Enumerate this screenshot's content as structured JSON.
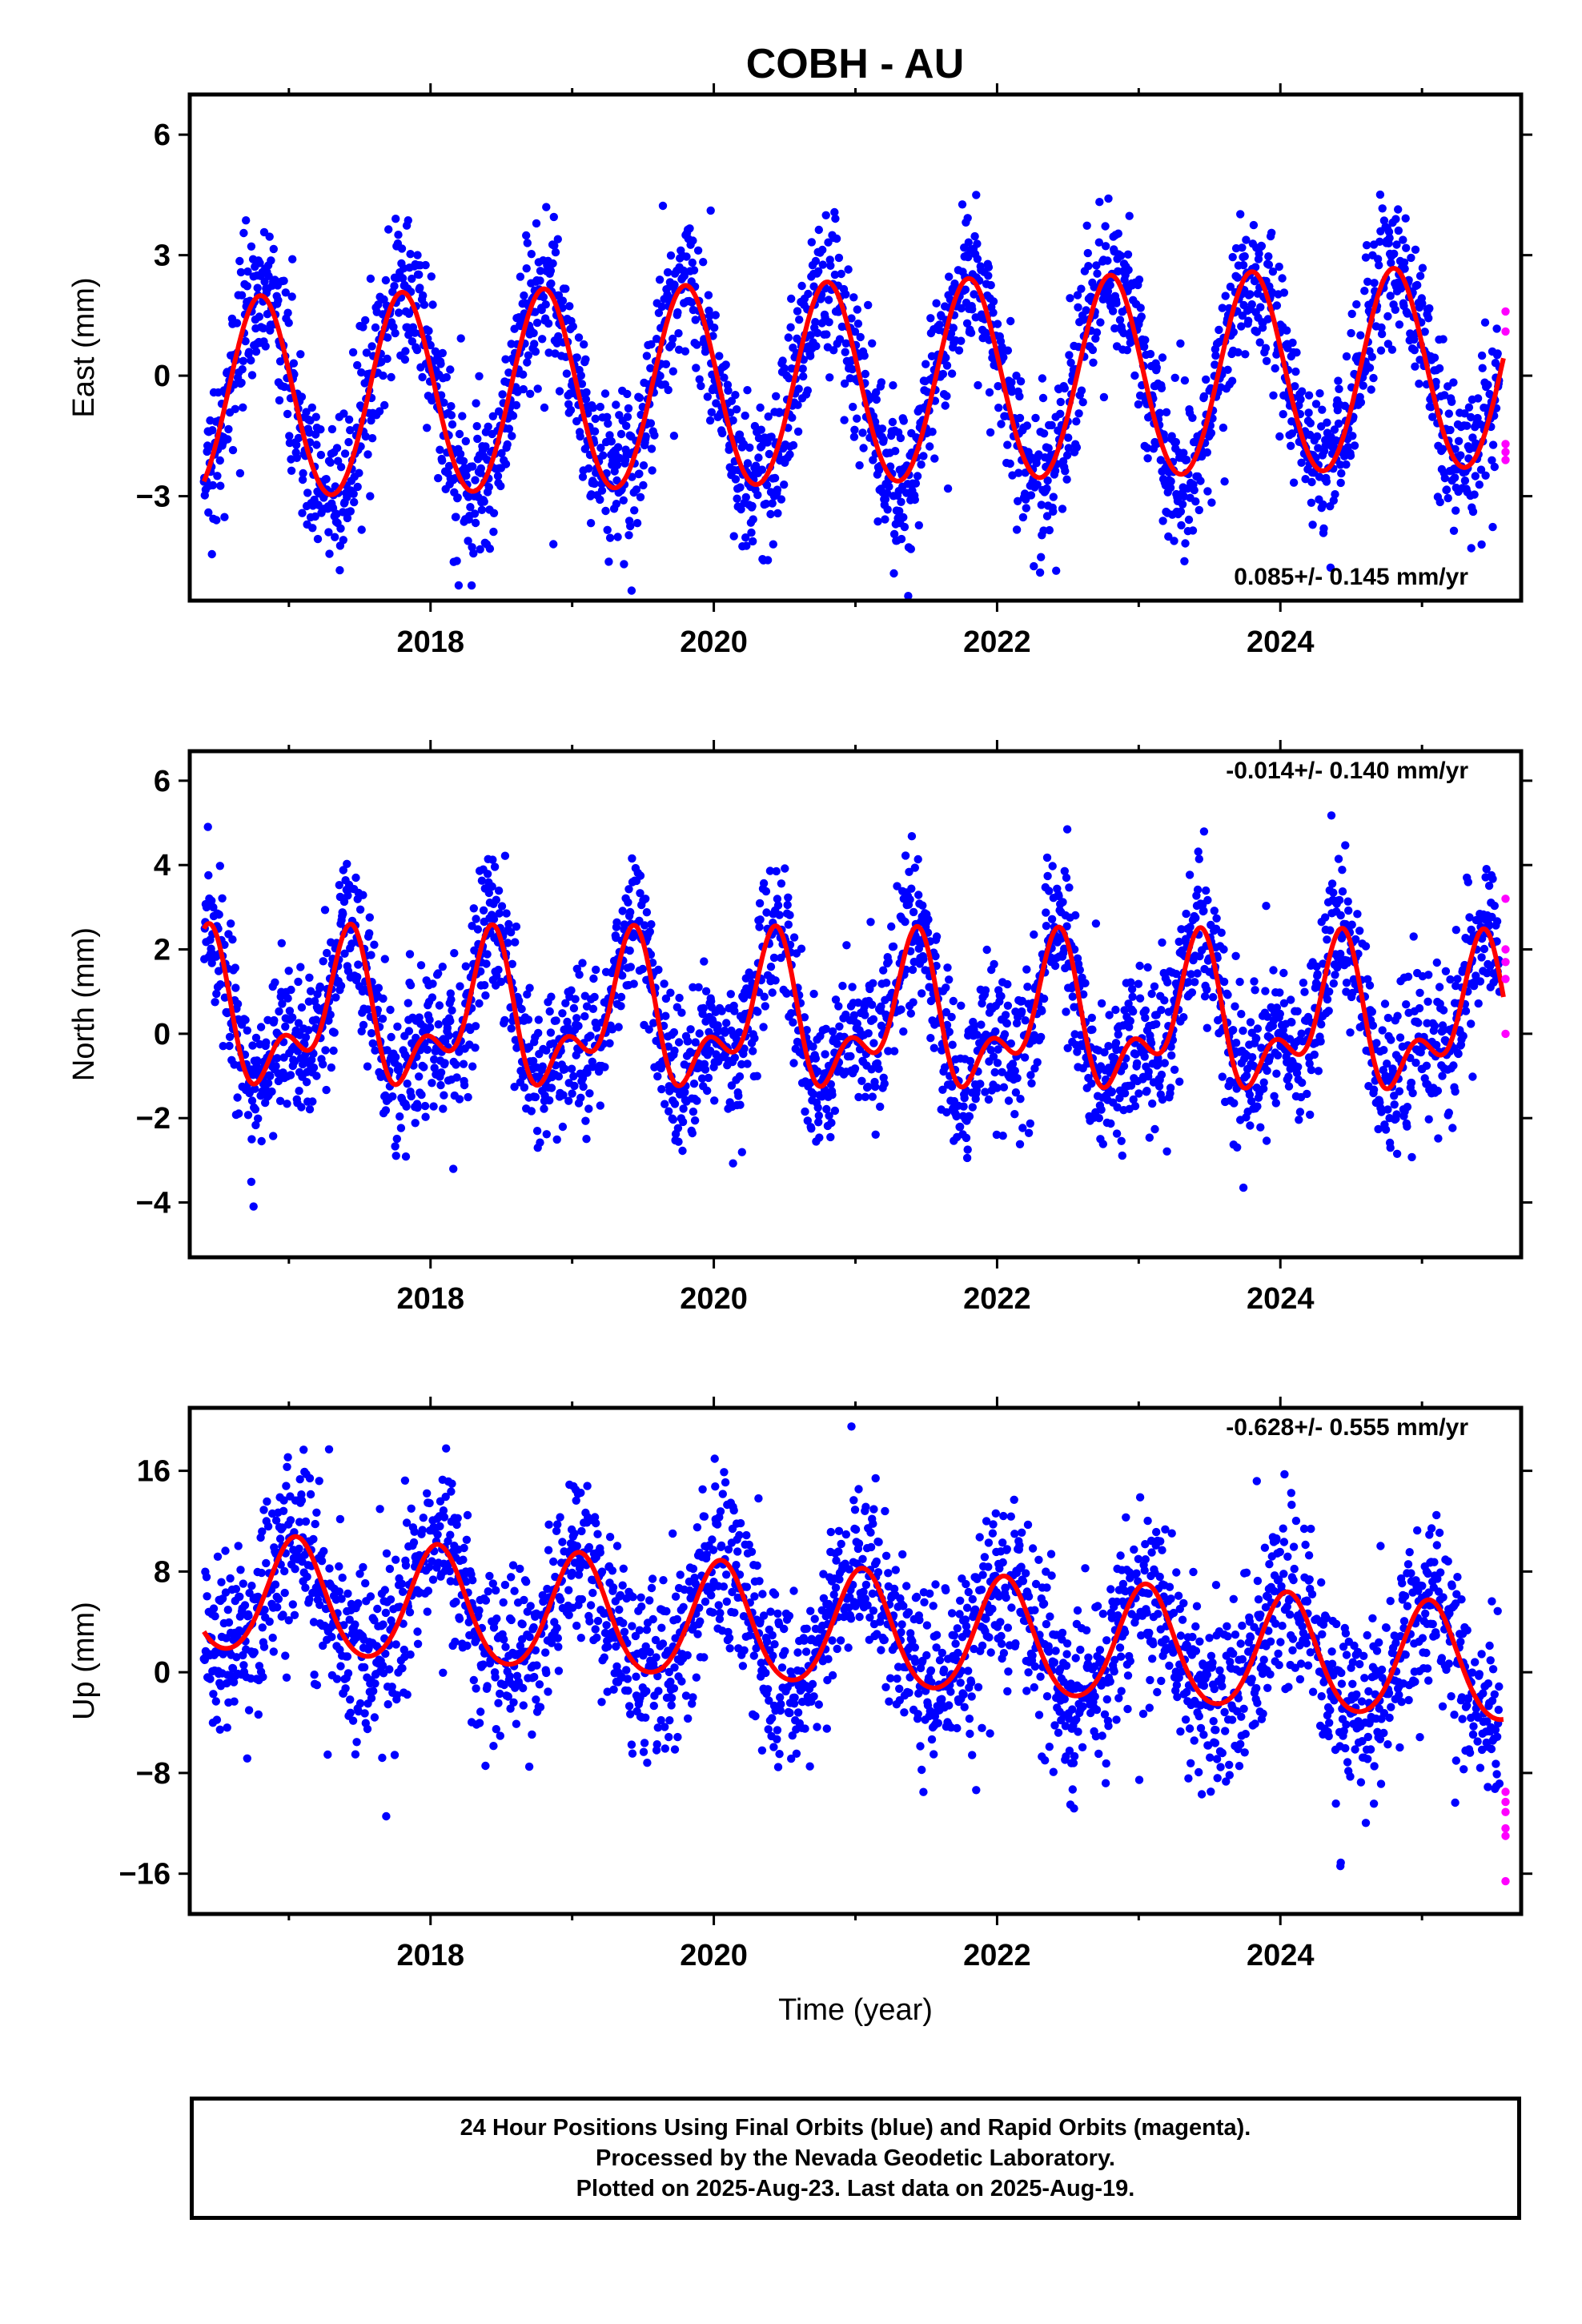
{
  "title": "COBH - AU",
  "caption": {
    "line1": "24 Hour Positions Using Final Orbits (blue) and Rapid Orbits (magenta).",
    "line2": "Processed by the Nevada Geodetic Laboratory.",
    "line3": "Plotted on 2025-Aug-23. Last data on 2025-Aug-19."
  },
  "colors": {
    "final_orbits": "#0000ff",
    "rapid_orbits": "#ff00ff",
    "model_fit": "#ff0000"
  },
  "chart_data": [
    {
      "type": "scatter",
      "ylabel": "East (mm)",
      "xlabel": "",
      "xlim": [
        2016.3,
        2025.7
      ],
      "ylim": [
        -5.6,
        7.0
      ],
      "xticks": [
        "2018",
        "2020",
        "2022",
        "2024"
      ],
      "yticks": [
        "6",
        "3",
        "0",
        "-3"
      ],
      "rate_label": "0.085+/- 0.145 mm/yr",
      "rate_position": "bottom-right",
      "fit": {
        "offset": -0.25,
        "trend": 0.085,
        "amp_annual": 2.5,
        "phase_annual": 2016.8,
        "amp_semi": 0.1,
        "phase_semi": 2016.8
      },
      "scatter": 0.95,
      "series": [
        {
          "name": "Final Orbits",
          "color": "#0000ff",
          "x_range": [
            2016.4,
            2025.55
          ]
        },
        {
          "name": "Rapid Orbits",
          "color": "#ff00ff",
          "x": [
            2025.59,
            2025.59,
            2025.59,
            2025.59,
            2025.59
          ],
          "y": [
            1.6,
            1.1,
            -1.7,
            -2.1,
            -1.9
          ]
        }
      ]
    },
    {
      "type": "scatter",
      "ylabel": "North (mm)",
      "xlabel": "",
      "xlim": [
        2016.3,
        2025.7
      ],
      "ylim": [
        -5.3,
        6.7
      ],
      "xticks": [
        "2018",
        "2020",
        "2022",
        "2024"
      ],
      "yticks": [
        "6",
        "4",
        "2",
        "0",
        "-2",
        "-4"
      ],
      "rate_label": "-0.014+/- 0.140 mm/yr",
      "rate_position": "top-right",
      "fit": {
        "offset": 0.3,
        "trend": -0.014,
        "amp_annual": 1.4,
        "phase_annual": 2016.4,
        "amp_semi": 0.9,
        "phase_semi": 2016.45
      },
      "scatter": 0.9,
      "series": [
        {
          "name": "Final Orbits",
          "color": "#0000ff",
          "x_range": [
            2016.4,
            2025.55
          ]
        },
        {
          "name": "Rapid Orbits",
          "color": "#ff00ff",
          "x": [
            2025.59,
            2025.59,
            2025.59,
            2025.59,
            2025.59
          ],
          "y": [
            3.2,
            2.0,
            1.7,
            1.3,
            0.0
          ]
        }
      ]
    },
    {
      "type": "scatter",
      "ylabel": "Up (mm)",
      "xlabel": "Time (year)",
      "xlim": [
        2016.3,
        2025.7
      ],
      "ylim": [
        -19.2,
        21.0
      ],
      "xticks": [
        "2018",
        "2020",
        "2022",
        "2024"
      ],
      "yticks": [
        "16",
        "8",
        "0",
        "-8",
        "-16"
      ],
      "rate_label": "-0.628+/- 0.555 mm/yr",
      "rate_position": "top-right",
      "fit": {
        "offset": 3.2,
        "trend": -0.628,
        "amp_annual": 4.6,
        "phase_annual": 2017.05,
        "amp_semi": 0.5,
        "phase_semi": 2017.05
      },
      "scatter": 3.5,
      "series": [
        {
          "name": "Final Orbits",
          "color": "#0000ff",
          "x_range": [
            2016.4,
            2025.55
          ]
        },
        {
          "name": "Rapid Orbits",
          "color": "#ff00ff",
          "x": [
            2025.59,
            2025.59,
            2025.59,
            2025.59,
            2025.59,
            2025.59
          ],
          "y": [
            -9.5,
            -10.3,
            -11.1,
            -12.4,
            -13.0,
            -16.6
          ]
        }
      ]
    }
  ]
}
